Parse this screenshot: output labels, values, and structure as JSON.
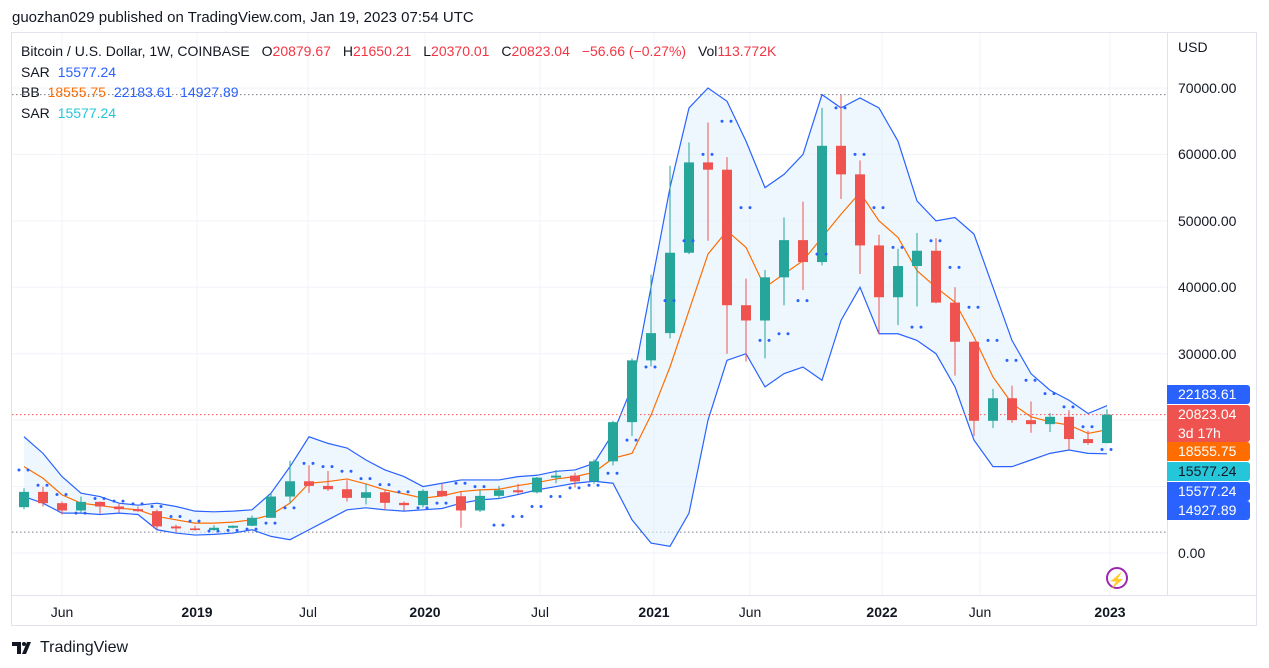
{
  "header": {
    "published": "guozhan029 published on TradingView.com, Jan 19, 2023 07:54 UTC"
  },
  "legend": {
    "symbol": "Bitcoin / U.S. Dollar, 1W, COINBASE",
    "o_label": "O",
    "o": "20879.67",
    "h_label": "H",
    "h": "21650.21",
    "l_label": "L",
    "l": "20370.01",
    "c_label": "C",
    "c": "20823.04",
    "change": "−56.66 (−0.27%)",
    "vol_label": "Vol",
    "vol": "113.772K",
    "sar1_label": "SAR",
    "sar1": "15577.24",
    "bb_label": "BB",
    "bb_basis": "18555.75",
    "bb_upper": "22183.61",
    "bb_lower": "14927.89",
    "sar2_label": "SAR",
    "sar2": "15577.24"
  },
  "price_axis": {
    "currency": "USD",
    "ticks": [
      "70000.00",
      "60000.00",
      "50000.00",
      "40000.00",
      "30000.00",
      "0.00"
    ]
  },
  "badges": [
    {
      "value": "22183.61",
      "color": "#2962ff"
    },
    {
      "value": "20823.04",
      "sub": "3d 17h",
      "color": "#ef5350"
    },
    {
      "value": "18555.75",
      "color": "#ff6d00"
    },
    {
      "value": "15577.24",
      "color": "#26c6da"
    },
    {
      "value": "15577.24",
      "color": "#2962ff"
    },
    {
      "value": "14927.89",
      "color": "#2962ff"
    }
  ],
  "time_axis": [
    {
      "label": "Jun",
      "year": false
    },
    {
      "label": "2019",
      "year": true
    },
    {
      "label": "Jul",
      "year": false
    },
    {
      "label": "2020",
      "year": true
    },
    {
      "label": "Jul",
      "year": false
    },
    {
      "label": "2021",
      "year": true
    },
    {
      "label": "Jun",
      "year": false
    },
    {
      "label": "2022",
      "year": true
    },
    {
      "label": "Jun",
      "year": false
    },
    {
      "label": "2023",
      "year": true
    }
  ],
  "footer": {
    "brand": "TradingView"
  },
  "colors": {
    "up": "#26a69a",
    "down": "#ef5350",
    "bb_band": "#2962ff",
    "bb_basis": "#ff6d00",
    "bb_fill": "#e3f2fd",
    "sar": "#2962ff",
    "last_price_line": "#ef5350"
  },
  "chart_data": {
    "type": "candlestick",
    "title": "Bitcoin / U.S. Dollar, 1W, COINBASE",
    "ylim": [
      -5500,
      75000
    ],
    "yticks": [
      0,
      30000,
      40000,
      50000,
      60000,
      70000
    ],
    "grid": true,
    "note_resolution": "approximate monthly summary of weekly candles",
    "first_open": 6900,
    "dates": [
      "2018-04",
      "2018-05",
      "2018-06",
      "2018-07",
      "2018-08",
      "2018-09",
      "2018-10",
      "2018-11",
      "2018-12",
      "2019-01",
      "2019-02",
      "2019-03",
      "2019-04",
      "2019-05",
      "2019-06",
      "2019-07",
      "2019-08",
      "2019-09",
      "2019-10",
      "2019-11",
      "2019-12",
      "2020-01",
      "2020-02",
      "2020-03",
      "2020-04",
      "2020-05",
      "2020-06",
      "2020-07",
      "2020-08",
      "2020-09",
      "2020-10",
      "2020-11",
      "2020-12",
      "2021-01",
      "2021-02",
      "2021-03",
      "2021-04",
      "2021-05",
      "2021-06",
      "2021-07",
      "2021-08",
      "2021-09",
      "2021-10",
      "2021-11",
      "2021-12",
      "2022-01",
      "2022-02",
      "2022-03",
      "2022-04",
      "2022-05",
      "2022-06",
      "2022-07",
      "2022-08",
      "2022-09",
      "2022-10",
      "2022-11",
      "2022-12",
      "2023-01"
    ],
    "close": [
      9200,
      7500,
      6400,
      7700,
      7000,
      6600,
      6300,
      4000,
      3700,
      3450,
      3800,
      4100,
      5300,
      8500,
      10800,
      10100,
      9600,
      8300,
      9150,
      7550,
      7200,
      9350,
      8550,
      6400,
      8600,
      9450,
      9140,
      11350,
      11650,
      10780,
      13800,
      19700,
      29000,
      33100,
      45200,
      58800,
      57700,
      37300,
      35000,
      41500,
      47100,
      43800,
      61300,
      57000,
      46300,
      38500,
      43200,
      45500,
      37700,
      31800,
      19900,
      23300,
      20000,
      19400,
      20500,
      17150,
      16550,
      20823.04
    ],
    "high": [
      9750,
      10000,
      7750,
      8500,
      7750,
      7400,
      7000,
      6550,
      4250,
      4100,
      4200,
      4150,
      5650,
      9000,
      13900,
      13200,
      12350,
      10950,
      10400,
      9500,
      7750,
      9600,
      10500,
      9200,
      9500,
      10100,
      10400,
      11450,
      12500,
      12100,
      14100,
      19900,
      29300,
      41900,
      58300,
      61800,
      64800,
      59600,
      41300,
      42600,
      50500,
      52900,
      67000,
      69000,
      59100,
      47900,
      45800,
      48200,
      47400,
      40000,
      31900,
      24700,
      25200,
      22800,
      21100,
      21500,
      18400,
      21650.21
    ],
    "low": [
      6600,
      7000,
      5800,
      6100,
      5900,
      6100,
      6200,
      3600,
      3150,
      3350,
      3350,
      3700,
      4050,
      5300,
      7450,
      9050,
      9350,
      7750,
      7300,
      6500,
      6400,
      6850,
      8450,
      3800,
      6150,
      8100,
      8900,
      8950,
      10500,
      9850,
      10400,
      13200,
      17600,
      28100,
      32300,
      45000,
      47000,
      30000,
      28800,
      29300,
      37300,
      39600,
      43300,
      53300,
      42000,
      32900,
      34300,
      37100,
      37600,
      26700,
      17600,
      18800,
      19600,
      18100,
      18200,
      15500,
      16300,
      16500
    ],
    "bb_upper": [
      17500,
      15000,
      11500,
      9000,
      8500,
      7500,
      7200,
      7500,
      7000,
      6300,
      6200,
      6300,
      6500,
      9000,
      13000,
      17500,
      16500,
      15800,
      14000,
      12500,
      11500,
      10000,
      10500,
      11000,
      11000,
      11000,
      11500,
      11700,
      12300,
      12500,
      13500,
      18000,
      25000,
      40000,
      55000,
      67000,
      70000,
      68000,
      62000,
      55000,
      57000,
      60000,
      69000,
      67000,
      68500,
      67000,
      62000,
      53000,
      50000,
      50500,
      48000,
      40000,
      32000,
      27000,
      24500,
      23000,
      21000,
      22183.61
    ],
    "bb_lower": [
      8500,
      7500,
      6000,
      6000,
      5800,
      6000,
      5800,
      3500,
      3000,
      2700,
      2800,
      3000,
      3500,
      2500,
      2000,
      3500,
      5000,
      6500,
      6800,
      6500,
      6300,
      6500,
      6700,
      7500,
      8000,
      8200,
      8800,
      9500,
      10000,
      10500,
      10800,
      10500,
      5000,
      1500,
      1000,
      6000,
      20000,
      29000,
      30000,
      25000,
      27000,
      28000,
      26000,
      35000,
      40000,
      33000,
      33000,
      32000,
      30000,
      25000,
      17000,
      13000,
      13000,
      14000,
      15000,
      15500,
      15000,
      14927.89
    ],
    "sar": [
      12500,
      10200,
      8800,
      6000,
      8200,
      7800,
      7400,
      7000,
      5500,
      4800,
      3300,
      3400,
      3600,
      4500,
      6800,
      13500,
      13000,
      12300,
      11200,
      10300,
      9200,
      6800,
      7500,
      10500,
      10000,
      4200,
      5500,
      7000,
      8500,
      9800,
      10200,
      12000,
      17000,
      28000,
      38000,
      47000,
      60000,
      65000,
      52000,
      32000,
      33000,
      38000,
      45000,
      67000,
      60000,
      52000,
      46000,
      34000,
      47000,
      43000,
      37000,
      32000,
      29000,
      26000,
      24000,
      22000,
      19000,
      15577.24
    ],
    "last_price": 20823.04
  }
}
